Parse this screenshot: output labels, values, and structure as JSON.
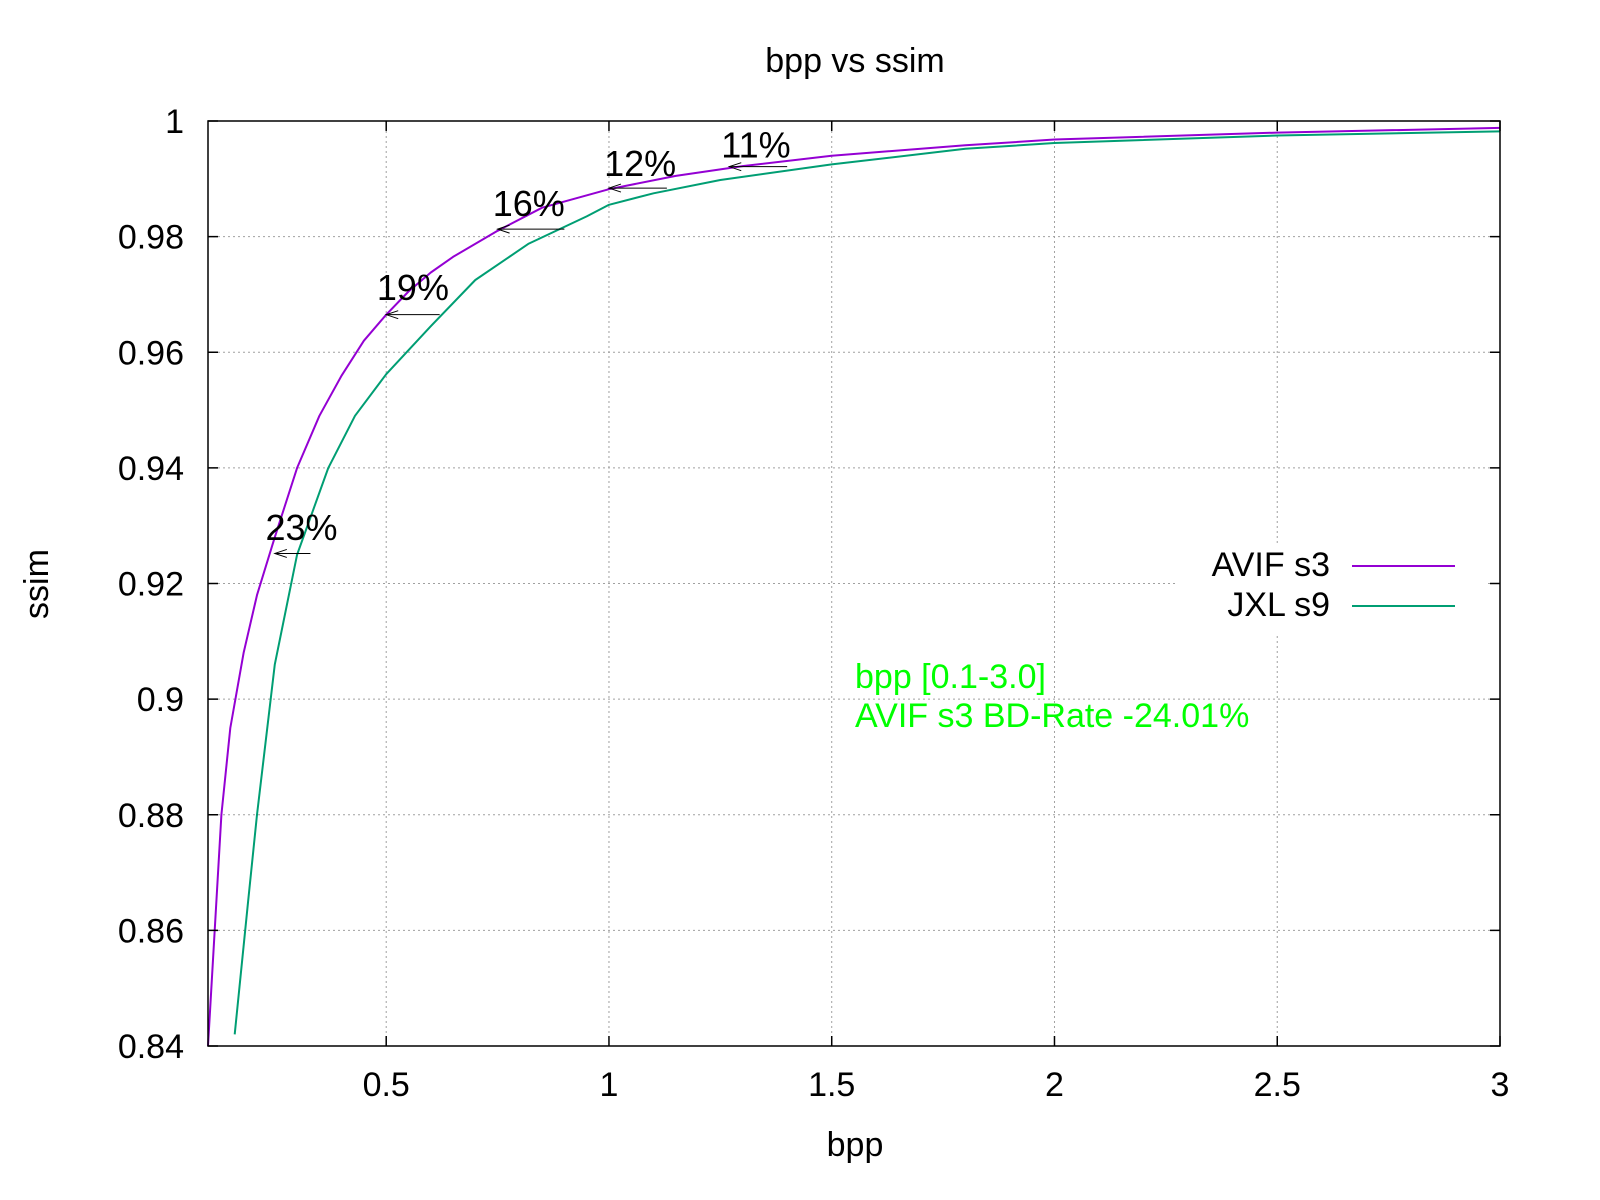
{
  "chart_data": {
    "type": "line",
    "title": "bpp vs ssim",
    "xlabel": "bpp",
    "ylabel": "ssim",
    "xlim": [
      0.1,
      3.0
    ],
    "ylim": [
      0.84,
      1.0
    ],
    "xticks": [
      0.5,
      1,
      1.5,
      2,
      2.5,
      3
    ],
    "xtick_labels": [
      "0.5",
      "1",
      "1.5",
      "2",
      "2.5",
      "3"
    ],
    "yticks": [
      0.84,
      0.86,
      0.88,
      0.9,
      0.92,
      0.94,
      0.96,
      0.98,
      1.0
    ],
    "ytick_labels": [
      "0.84",
      "0.86",
      "0.88",
      "0.9",
      "0.92",
      "0.94",
      "0.96",
      "0.98",
      "1"
    ],
    "grid": true,
    "legend_position": "right",
    "series": [
      {
        "name": "AVIF s3",
        "color": "#9400d3",
        "x": [
          0.1,
          0.13,
          0.15,
          0.18,
          0.21,
          0.25,
          0.3,
          0.35,
          0.4,
          0.45,
          0.5,
          0.55,
          0.6,
          0.65,
          0.75,
          0.85,
          1.0,
          1.15,
          1.3,
          1.5,
          1.8,
          2.0,
          2.5,
          3.0
        ],
        "y": [
          0.84,
          0.88,
          0.895,
          0.908,
          0.918,
          0.928,
          0.94,
          0.949,
          0.956,
          0.962,
          0.9665,
          0.9705,
          0.9738,
          0.9765,
          0.981,
          0.985,
          0.9882,
          0.9905,
          0.9922,
          0.994,
          0.9958,
          0.9968,
          0.998,
          0.9988
        ]
      },
      {
        "name": "JXL s9",
        "color": "#009e73",
        "x": [
          0.16,
          0.19,
          0.21,
          0.25,
          0.3,
          0.37,
          0.43,
          0.5,
          0.6,
          0.7,
          0.82,
          0.95,
          1.0,
          1.1,
          1.25,
          1.5,
          1.8,
          2.0,
          2.5,
          3.0
        ],
        "y": [
          0.842,
          0.865,
          0.88,
          0.906,
          0.925,
          0.94,
          0.949,
          0.9562,
          0.9645,
          0.9725,
          0.9788,
          0.9835,
          0.9855,
          0.9875,
          0.9898,
          0.9925,
          0.9952,
          0.9962,
          0.9975,
          0.9982
        ]
      }
    ],
    "annotations": [
      {
        "label": "23%",
        "x_from": 0.33,
        "x_to": 0.25,
        "y": 0.9252,
        "label_x": 0.31,
        "label_y": 0.9275
      },
      {
        "label": "19%",
        "x_from": 0.62,
        "x_to": 0.5,
        "y": 0.9665,
        "label_x": 0.56,
        "label_y": 0.969
      },
      {
        "label": "16%",
        "x_from": 0.9,
        "x_to": 0.75,
        "y": 0.9813,
        "label_x": 0.82,
        "label_y": 0.9836
      },
      {
        "label": "12%",
        "x_from": 1.13,
        "x_to": 1.0,
        "y": 0.9884,
        "label_x": 1.07,
        "label_y": 0.9905
      },
      {
        "label": "11%",
        "x_from": 1.4,
        "x_to": 1.27,
        "y": 0.9921,
        "label_x": 1.33,
        "label_y": 0.9937
      }
    ],
    "note": {
      "color": "#00ff00",
      "lines": [
        "bpp [0.1-3.0]",
        "AVIF s3 BD-Rate -24.01%"
      ]
    }
  }
}
